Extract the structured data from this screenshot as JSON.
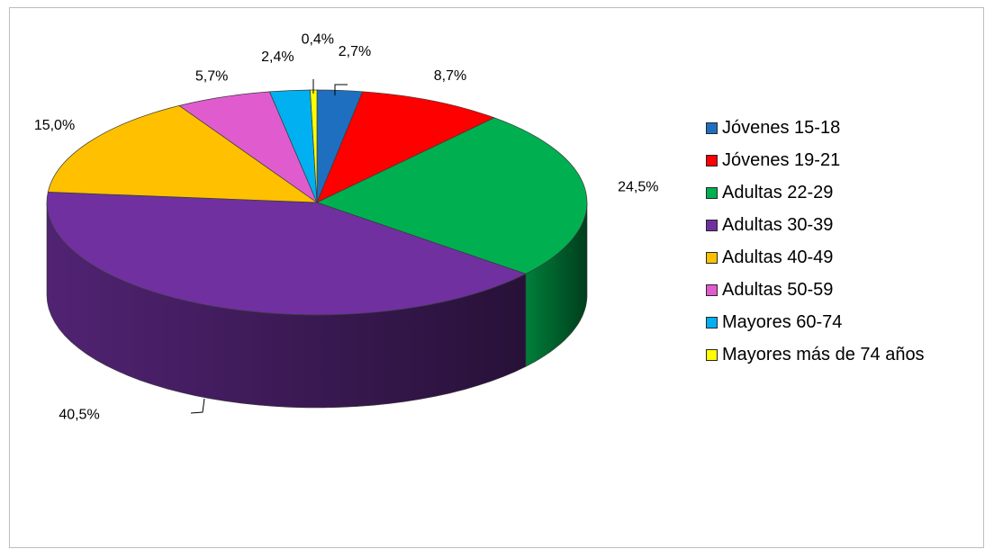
{
  "chart_data": {
    "type": "pie",
    "categories": [
      "Jóvenes 15-18",
      "Jóvenes 19-21",
      "Adultas 22-29",
      "Adultas 30-39",
      "Adultas 40-49",
      "Adultas 50-59",
      "Mayores 60-74",
      "Mayores más de 74 años"
    ],
    "values": [
      2.7,
      8.7,
      24.5,
      40.5,
      15.0,
      5.7,
      2.4,
      0.4
    ],
    "data_labels": [
      "2,7%",
      "8,7%",
      "24,5%",
      "40,5%",
      "15,0%",
      "5,7%",
      "2,4%",
      "0,4%"
    ],
    "colors": [
      "#1f6fc0",
      "#ff0000",
      "#00b050",
      "#7030a0",
      "#ffc000",
      "#e05cce",
      "#00b0f0",
      "#ffff00"
    ],
    "title": "",
    "legend_position": "right",
    "style": "3d-pie"
  }
}
